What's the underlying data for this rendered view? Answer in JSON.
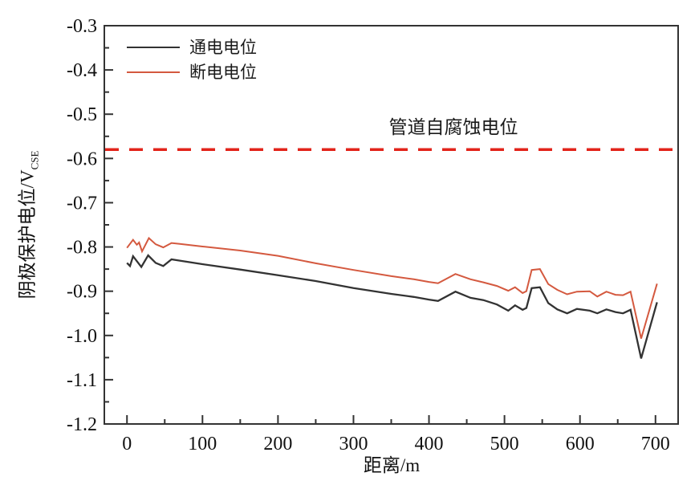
{
  "chart_data": {
    "type": "line",
    "title": "",
    "xlabel": "距离/m",
    "ylabel_main": "阴极保护电位/V",
    "ylabel_sub": "CSE",
    "xlim": [
      -30,
      730
    ],
    "ylim": [
      -1.2,
      -0.3
    ],
    "grid": false,
    "legend_position": "top-left",
    "x_ticks": [
      0,
      100,
      200,
      300,
      400,
      500,
      600,
      700
    ],
    "x_minor_ticks": [
      50,
      150,
      250,
      350,
      450,
      550,
      650
    ],
    "y_ticks": [
      -0.3,
      -0.4,
      -0.5,
      -0.6,
      -0.7,
      -0.8,
      -0.9,
      -1.0,
      -1.1,
      -1.2
    ],
    "y_minor_ticks": [
      -0.35,
      -0.45,
      -0.55,
      -0.65,
      -0.75,
      -0.85,
      -0.95,
      -1.05,
      -1.15
    ],
    "frame_color": "#333333",
    "reference_line": {
      "value": -0.58,
      "label": "管道自腐蚀电位",
      "color": "#e2231a",
      "style": "dashed"
    },
    "series": [
      {
        "name": "通电电位",
        "color": "#333333",
        "line_width": 2.3,
        "points": [
          [
            0,
            -0.836
          ],
          [
            4,
            -0.843
          ],
          [
            8,
            -0.821
          ],
          [
            13,
            -0.832
          ],
          [
            19,
            -0.845
          ],
          [
            28,
            -0.819
          ],
          [
            38,
            -0.836
          ],
          [
            48,
            -0.843
          ],
          [
            59,
            -0.828
          ],
          [
            70,
            -0.831
          ],
          [
            100,
            -0.839
          ],
          [
            150,
            -0.851
          ],
          [
            200,
            -0.864
          ],
          [
            250,
            -0.877
          ],
          [
            300,
            -0.893
          ],
          [
            350,
            -0.906
          ],
          [
            380,
            -0.913
          ],
          [
            400,
            -0.919
          ],
          [
            412,
            -0.922
          ],
          [
            435,
            -0.901
          ],
          [
            455,
            -0.915
          ],
          [
            472,
            -0.92
          ],
          [
            490,
            -0.93
          ],
          [
            505,
            -0.944
          ],
          [
            514,
            -0.932
          ],
          [
            524,
            -0.942
          ],
          [
            529,
            -0.938
          ],
          [
            536,
            -0.893
          ],
          [
            547,
            -0.891
          ],
          [
            558,
            -0.927
          ],
          [
            570,
            -0.941
          ],
          [
            583,
            -0.95
          ],
          [
            596,
            -0.94
          ],
          [
            613,
            -0.944
          ],
          [
            623,
            -0.95
          ],
          [
            635,
            -0.941
          ],
          [
            647,
            -0.947
          ],
          [
            657,
            -0.95
          ],
          [
            667,
            -0.942
          ],
          [
            681,
            -1.052
          ],
          [
            702,
            -0.925
          ]
        ]
      },
      {
        "name": "断电电位",
        "color": "#d4593f",
        "line_width": 2.0,
        "points": [
          [
            0,
            -0.802
          ],
          [
            8,
            -0.784
          ],
          [
            13,
            -0.795
          ],
          [
            16,
            -0.79
          ],
          [
            20,
            -0.81
          ],
          [
            29,
            -0.78
          ],
          [
            38,
            -0.794
          ],
          [
            48,
            -0.801
          ],
          [
            59,
            -0.791
          ],
          [
            70,
            -0.793
          ],
          [
            100,
            -0.799
          ],
          [
            150,
            -0.808
          ],
          [
            200,
            -0.82
          ],
          [
            250,
            -0.837
          ],
          [
            300,
            -0.852
          ],
          [
            350,
            -0.866
          ],
          [
            380,
            -0.873
          ],
          [
            400,
            -0.879
          ],
          [
            412,
            -0.882
          ],
          [
            435,
            -0.861
          ],
          [
            455,
            -0.873
          ],
          [
            472,
            -0.88
          ],
          [
            490,
            -0.888
          ],
          [
            505,
            -0.899
          ],
          [
            514,
            -0.891
          ],
          [
            524,
            -0.904
          ],
          [
            529,
            -0.9
          ],
          [
            536,
            -0.852
          ],
          [
            547,
            -0.85
          ],
          [
            558,
            -0.884
          ],
          [
            570,
            -0.897
          ],
          [
            583,
            -0.907
          ],
          [
            596,
            -0.901
          ],
          [
            613,
            -0.9
          ],
          [
            623,
            -0.912
          ],
          [
            635,
            -0.901
          ],
          [
            647,
            -0.908
          ],
          [
            657,
            -0.909
          ],
          [
            667,
            -0.901
          ],
          [
            681,
            -1.007
          ],
          [
            702,
            -0.883
          ]
        ]
      }
    ]
  }
}
